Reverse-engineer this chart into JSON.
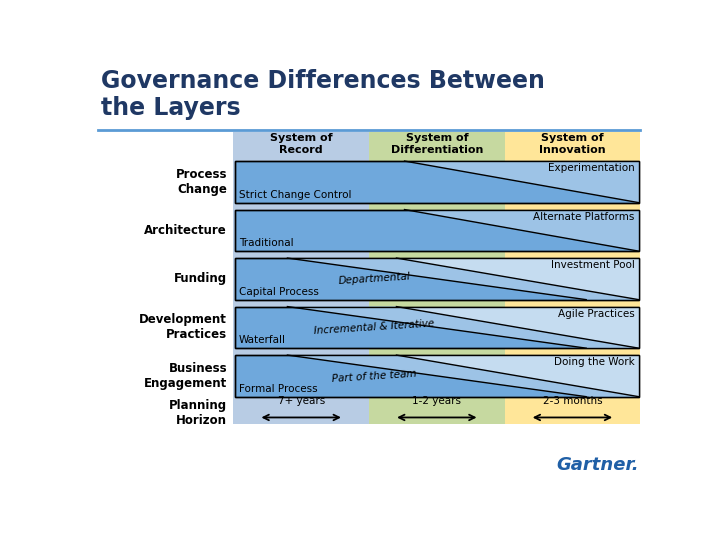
{
  "title_line1": "Governance Differences Between",
  "title_line2": "the Layers",
  "title_color": "#1F3864",
  "bg_color": "#FFFFFF",
  "col_bg_colors": [
    "#B8CCE4",
    "#C6D9A0",
    "#FFE699"
  ],
  "col_headers": [
    "System of\nRecord",
    "System of\nDifferentiation",
    "System of\nInnovation"
  ],
  "row_labels": [
    "Process\nChange",
    "Architecture",
    "Funding",
    "Development\nPractices",
    "Business\nEngagement",
    "Planning\nHorizon"
  ],
  "rows": [
    {
      "bottom_text": "Strict Change Control",
      "top_text": "Experimentation"
    },
    {
      "bottom_text": "Traditional",
      "top_text": "Alternate Platforms"
    },
    {
      "bottom_text": "Capital Process",
      "mid_text": "Departmental",
      "top_text": "Investment Pool"
    },
    {
      "bottom_text": "Waterfall",
      "mid_text": "Incremental & Iterative",
      "top_text": "Agile Practices"
    },
    {
      "bottom_text": "Formal Process",
      "mid_text": "Part of the team",
      "top_text": "Doing the Work"
    }
  ],
  "planning_horizon": [
    "7+ years",
    "1-2 years",
    "2-3 months"
  ],
  "box_fill": "#6FA8DC",
  "box_fill_light": "#9DC3E6",
  "box_edge": "#000000",
  "gartner_color": "#1F5FA6",
  "line_color": "#5B9BD5",
  "label_color": "#000000"
}
